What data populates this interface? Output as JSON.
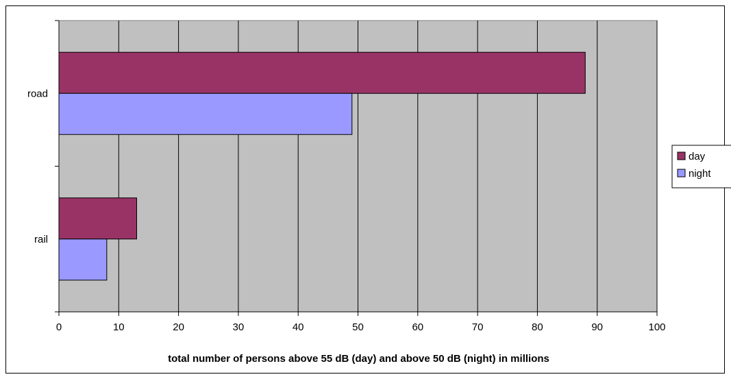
{
  "chart_data": {
    "type": "bar",
    "orientation": "horizontal",
    "categories": [
      "rail",
      "road"
    ],
    "series": [
      {
        "name": "day",
        "color": "#993366",
        "values": [
          13,
          88
        ]
      },
      {
        "name": "night",
        "color": "#9999ff",
        "values": [
          8,
          49
        ]
      }
    ],
    "xlabel": "total number of persons above 55 dB (day) and above 50 dB (night) in millions",
    "ylabel": "",
    "xlim": [
      0,
      100
    ],
    "xticks": [
      0,
      10,
      20,
      30,
      40,
      50,
      60,
      70,
      80,
      90,
      100
    ],
    "grid": "vertical",
    "legend_position": "right",
    "plot_background": "#c0c0c0"
  }
}
